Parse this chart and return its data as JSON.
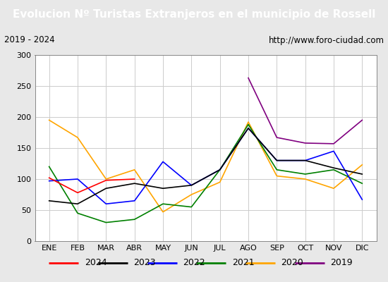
{
  "title": "Evolucion Nº Turistas Extranjeros en el municipio de Rossell",
  "subtitle_left": "2019 - 2024",
  "subtitle_right": "http://www.foro-ciudad.com",
  "title_bg": "#4472c4",
  "title_color": "white",
  "months": [
    "ENE",
    "FEB",
    "MAR",
    "ABR",
    "MAY",
    "JUN",
    "JUL",
    "AGO",
    "SEP",
    "OCT",
    "NOV",
    "DIC"
  ],
  "ylim": [
    0,
    300
  ],
  "yticks": [
    0,
    50,
    100,
    150,
    200,
    250,
    300
  ],
  "series": {
    "2024": {
      "color": "red",
      "data": [
        102,
        78,
        98,
        100,
        null,
        null,
        null,
        null,
        null,
        null,
        null,
        null
      ]
    },
    "2023": {
      "color": "black",
      "data": [
        65,
        60,
        85,
        93,
        85,
        90,
        115,
        182,
        130,
        130,
        118,
        108
      ]
    },
    "2022": {
      "color": "blue",
      "data": [
        97,
        100,
        60,
        65,
        128,
        90,
        115,
        182,
        130,
        130,
        145,
        67
      ]
    },
    "2021": {
      "color": "green",
      "data": [
        120,
        45,
        30,
        35,
        60,
        55,
        115,
        188,
        115,
        108,
        115,
        93
      ]
    },
    "2020": {
      "color": "orange",
      "data": [
        195,
        167,
        100,
        115,
        47,
        75,
        95,
        192,
        105,
        100,
        85,
        123
      ]
    },
    "2019": {
      "color": "purple",
      "data": [
        null,
        null,
        null,
        null,
        null,
        null,
        null,
        263,
        167,
        158,
        157,
        195
      ]
    }
  },
  "legend_order": [
    "2024",
    "2023",
    "2022",
    "2021",
    "2020",
    "2019"
  ],
  "bg_color": "#e8e8e8",
  "plot_bg_color": "#e8e8e8",
  "chart_bg_color": "white",
  "grid_color": "#cccccc",
  "title_fontsize": 11,
  "subtitle_fontsize": 8.5,
  "tick_fontsize": 8,
  "legend_fontsize": 9
}
